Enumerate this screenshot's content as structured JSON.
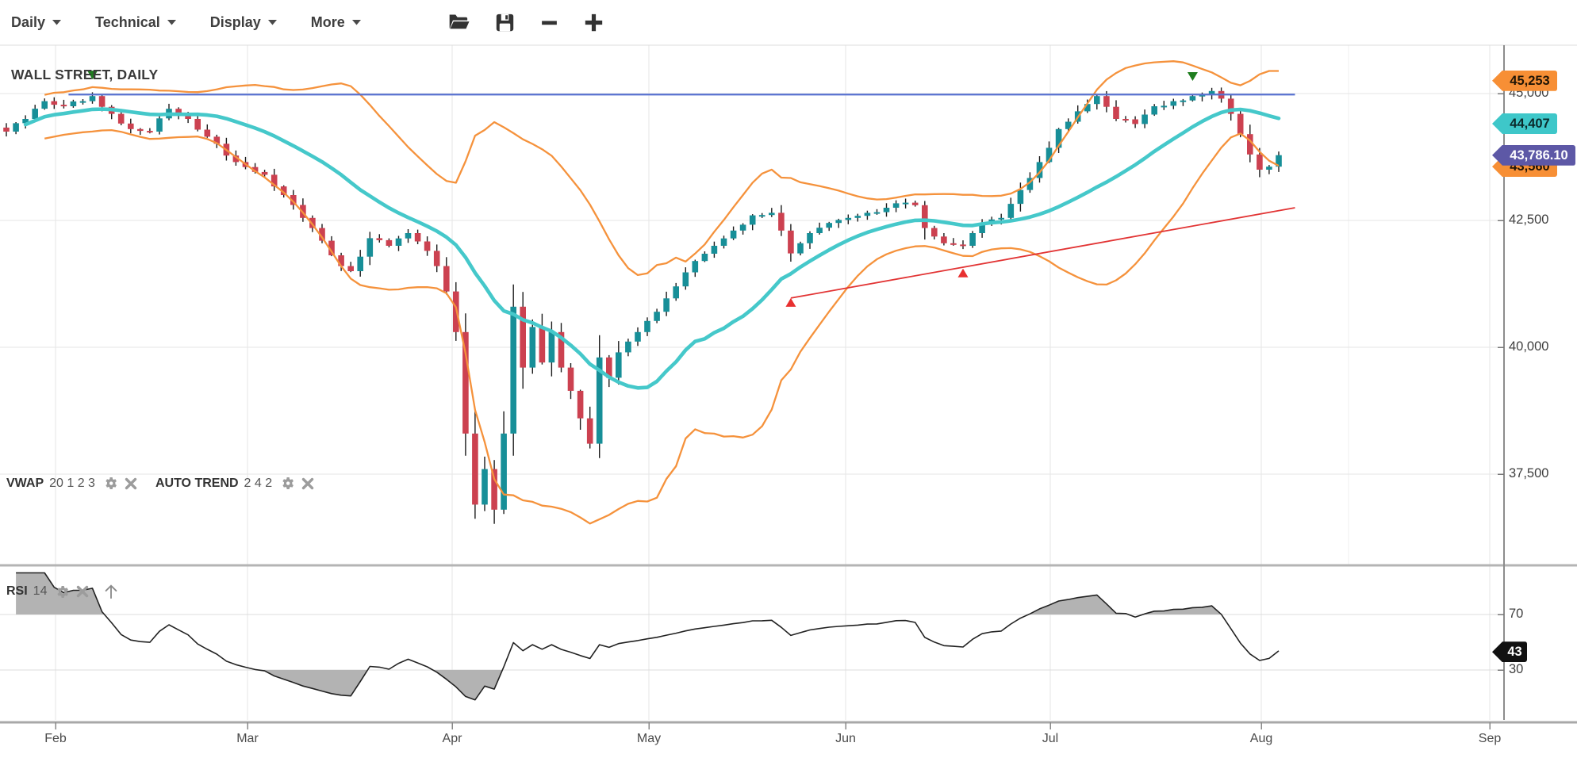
{
  "toolbar": {
    "menus": [
      {
        "label": "Daily"
      },
      {
        "label": "Technical"
      },
      {
        "label": "Display"
      },
      {
        "label": "More"
      }
    ],
    "icons": [
      {
        "name": "open-file-icon"
      },
      {
        "name": "save-icon"
      },
      {
        "name": "zoom-out-icon"
      },
      {
        "name": "zoom-in-icon"
      }
    ]
  },
  "chart": {
    "title": "WALL STREET, DAILY",
    "price_axis": {
      "labels": [
        "45,000",
        "42,500",
        "40,000",
        "37,500"
      ],
      "values": [
        45000,
        42500,
        40000,
        37500
      ]
    },
    "time_axis": {
      "labels": [
        "Feb",
        "Mar",
        "Apr",
        "May",
        "Jun",
        "Jul",
        "Aug",
        "Sep"
      ]
    },
    "rsi_axis": {
      "labels": [
        "70",
        "30"
      ],
      "values": [
        70,
        30
      ]
    },
    "badges": [
      {
        "id": "upper-band",
        "text": "45,253",
        "value": 45253,
        "bg": "#f78f35",
        "fg": "#201505"
      },
      {
        "id": "vwap",
        "text": "44,407",
        "value": 44407,
        "bg": "#3ec7c9",
        "fg": "#0b2a2b"
      },
      {
        "id": "lower-band",
        "text": "43,560",
        "value": 43560,
        "bg": "#f78f35",
        "fg": "#201505"
      },
      {
        "id": "last-price",
        "text": "43,786.10",
        "value": 43786.1,
        "bg": "#5d58a6",
        "fg": "#ffffff",
        "top": true
      }
    ],
    "rsi_badge": {
      "text": "43",
      "value": 43,
      "bg": "#111111",
      "fg": "#ffffff"
    },
    "legend_price": {
      "vwap_label": "VWAP",
      "vwap_params": "20 1 2 3",
      "trend_label": "AUTO TREND",
      "trend_params": "2 4 2"
    },
    "legend_rsi": {
      "label": "RSI",
      "params": "14"
    }
  },
  "chart_data": {
    "type": "candlestick",
    "symbol": "WALL STREET",
    "timeframe": "Daily",
    "title": "WALL STREET, DAILY",
    "x_axis_months": [
      "Feb",
      "Mar",
      "Apr",
      "May",
      "Jun",
      "Jul",
      "Aug",
      "Sep"
    ],
    "price_ticks": [
      45000,
      42500,
      40000,
      37500
    ],
    "candles_count": 134,
    "noise": 45,
    "close_keypoints": [
      [
        0,
        44250
      ],
      [
        2,
        44500
      ],
      [
        4,
        44850
      ],
      [
        6,
        44750
      ],
      [
        9,
        44950
      ],
      [
        11,
        44600
      ],
      [
        13,
        44300
      ],
      [
        15,
        44250
      ],
      [
        17,
        44700
      ],
      [
        19,
        44500
      ],
      [
        21,
        44150
      ],
      [
        24,
        43650
      ],
      [
        27,
        43400
      ],
      [
        29,
        43000
      ],
      [
        31,
        42550
      ],
      [
        33,
        42100
      ],
      [
        35,
        41600
      ],
      [
        36,
        41500
      ],
      [
        38,
        42150
      ],
      [
        40,
        42000
      ],
      [
        42,
        42250
      ],
      [
        44,
        41900
      ],
      [
        45,
        41600
      ],
      [
        46,
        41100
      ],
      [
        47,
        40300
      ],
      [
        48,
        38300
      ],
      [
        49,
        36900
      ],
      [
        50,
        37600
      ],
      [
        51,
        36800
      ],
      [
        52,
        38300
      ],
      [
        53,
        40800
      ],
      [
        54,
        39600
      ],
      [
        55,
        40400
      ],
      [
        56,
        39700
      ],
      [
        57,
        40300
      ],
      [
        58,
        39600
      ],
      [
        60,
        38600
      ],
      [
        61,
        38100
      ],
      [
        62,
        39800
      ],
      [
        63,
        39400
      ],
      [
        64,
        39900
      ],
      [
        66,
        40300
      ],
      [
        68,
        40700
      ],
      [
        70,
        41200
      ],
      [
        72,
        41700
      ],
      [
        74,
        42000
      ],
      [
        76,
        42300
      ],
      [
        78,
        42600
      ],
      [
        80,
        42650
      ],
      [
        81,
        42300
      ],
      [
        82,
        41850
      ],
      [
        83,
        42050
      ],
      [
        84,
        42250
      ],
      [
        86,
        42450
      ],
      [
        88,
        42550
      ],
      [
        90,
        42650
      ],
      [
        92,
        42750
      ],
      [
        94,
        42850
      ],
      [
        95,
        42800
      ],
      [
        96,
        42350
      ],
      [
        98,
        42050
      ],
      [
        100,
        42000
      ],
      [
        101,
        42250
      ],
      [
        102,
        42450
      ],
      [
        104,
        42550
      ],
      [
        106,
        43100
      ],
      [
        108,
        43650
      ],
      [
        110,
        44300
      ],
      [
        112,
        44650
      ],
      [
        114,
        44950
      ],
      [
        116,
        44500
      ],
      [
        118,
        44400
      ],
      [
        120,
        44750
      ],
      [
        122,
        44850
      ],
      [
        124,
        44950
      ],
      [
        126,
        45050
      ],
      [
        127,
        44900
      ],
      [
        128,
        44600
      ],
      [
        129,
        44200
      ],
      [
        130,
        43800
      ],
      [
        131,
        43500
      ],
      [
        132,
        43560
      ],
      [
        133,
        43786.1
      ]
    ],
    "overlays": [
      {
        "name": "VWAP",
        "params": "20 1 2 3",
        "last": 44407,
        "color": "#45c8ca"
      },
      {
        "name": "BANDS",
        "upper_last": 45253,
        "lower_last": 43560,
        "color": "#f5923c"
      },
      {
        "name": "AUTO TREND",
        "params": "2 4 2",
        "color": "#e23434"
      }
    ],
    "resistance_line": {
      "price": 44980,
      "start_index": 6.5,
      "end_index": 134.7,
      "color": "#5872d0"
    },
    "trend_line": {
      "start_index": 82,
      "start_price": 40970,
      "end_index": 134.7,
      "end_price": 42750,
      "color": "#e23434"
    },
    "markers": [
      {
        "type": "sell",
        "index": 9,
        "price": 45280,
        "color": "#1e7d1e"
      },
      {
        "type": "buy",
        "index": 82,
        "price": 40970,
        "color": "#e83030"
      },
      {
        "type": "buy",
        "index": 100,
        "price": 41550,
        "color": "#e83030"
      },
      {
        "type": "sell",
        "index": 124,
        "price": 45250,
        "color": "#1e7d1e"
      }
    ],
    "indicator": {
      "name": "RSI",
      "period": 14,
      "last": 43,
      "overbought": 70,
      "oversold": 30,
      "line_color": "#222222",
      "fill_color": "#b3b3b3"
    },
    "last_price": 43786.1,
    "colors": {
      "up": "#178f98",
      "down": "#cc4150",
      "wick": "#1c1c1c",
      "grid": "#e6e6e6",
      "rsi_grid": "#dcdcdc",
      "axis": "#8c8c8c",
      "separator": "#b4b4b4"
    }
  }
}
